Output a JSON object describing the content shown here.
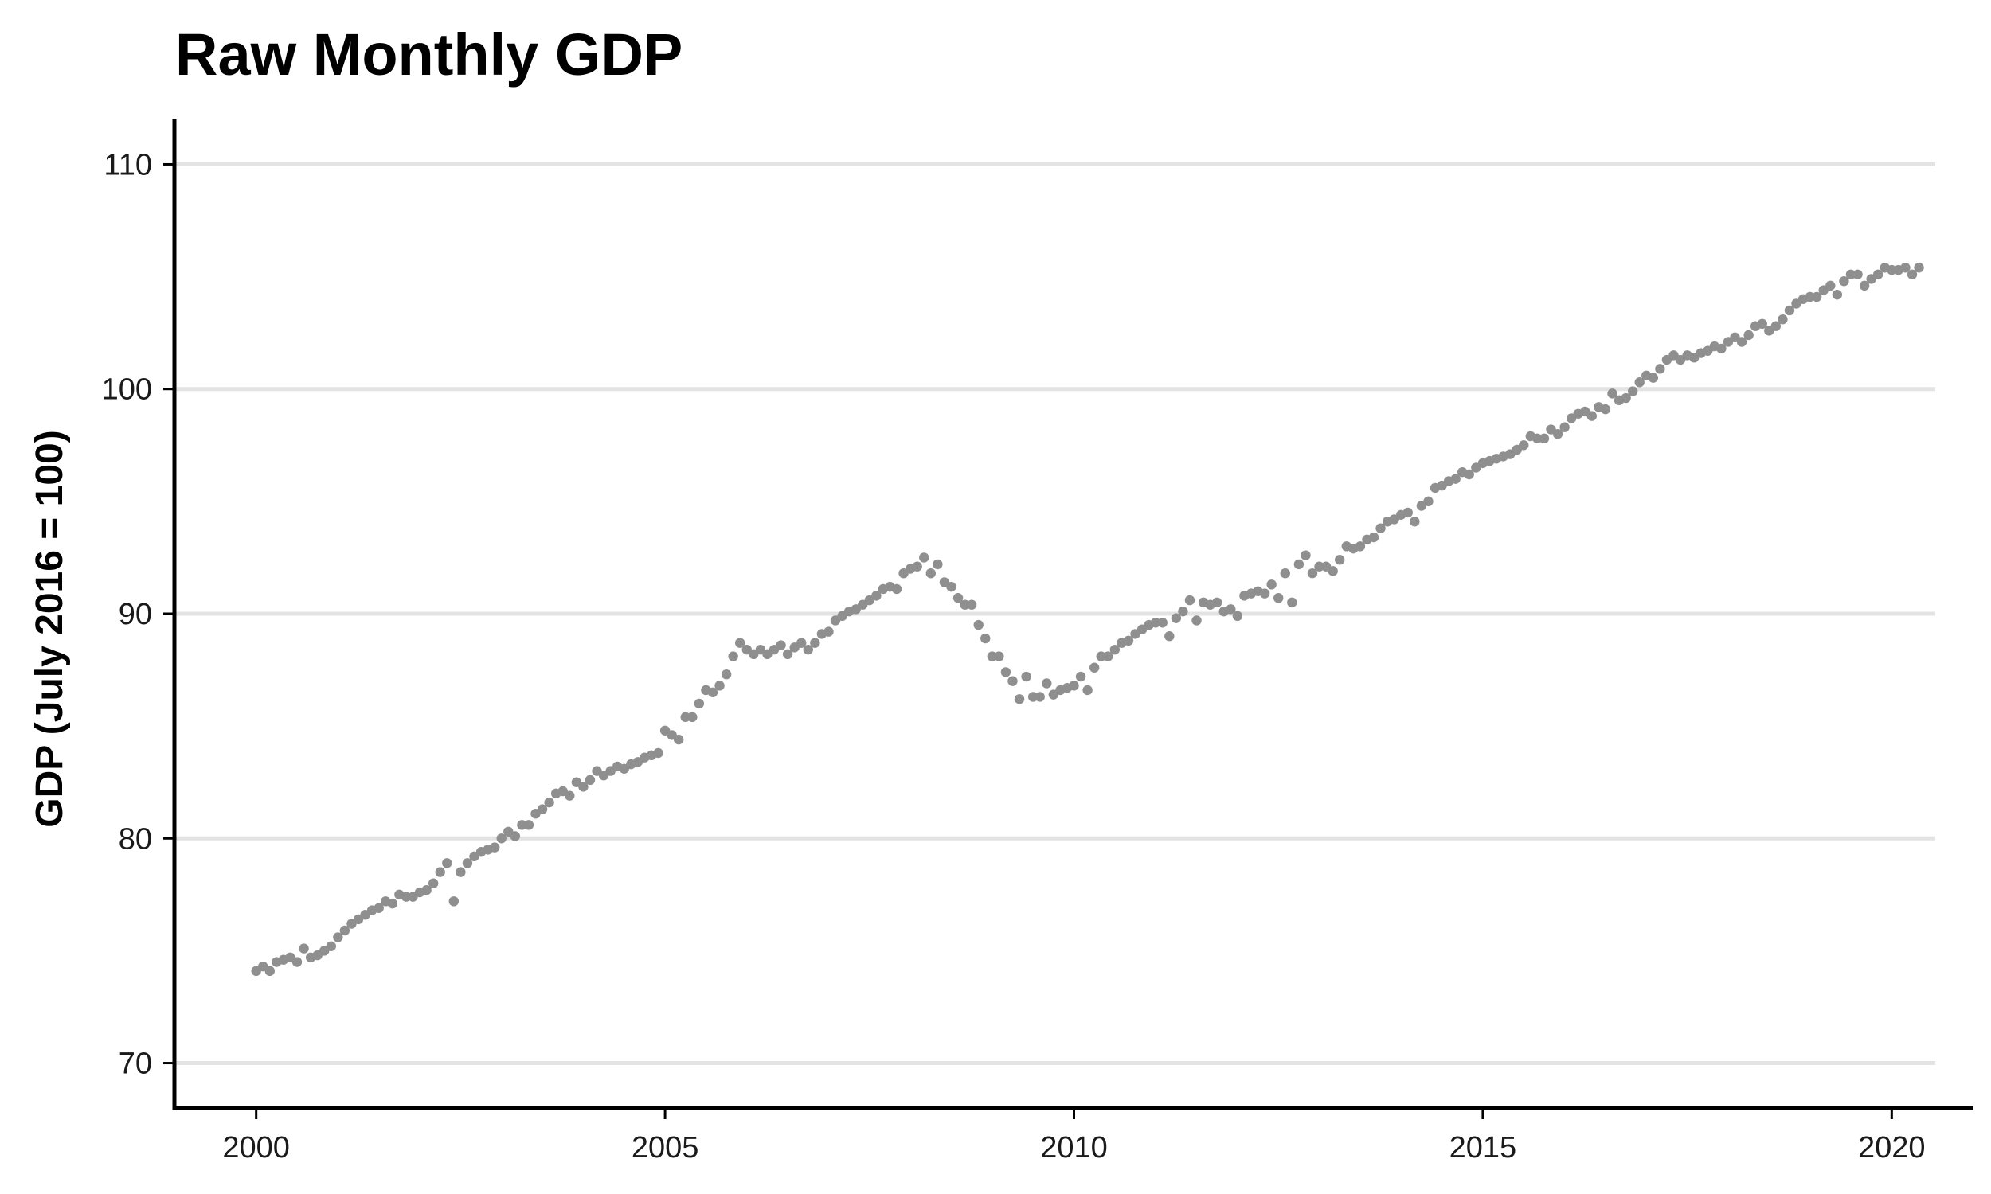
{
  "chart_data": {
    "type": "scatter",
    "title": "Raw Monthly GDP",
    "xlabel": "",
    "ylabel": "GDP (July 2016 = 100)",
    "xlim": [
      1999.0,
      2021.0
    ],
    "ylim": [
      68.0,
      112.0
    ],
    "x_ticks": [
      "2000",
      "2005",
      "2010",
      "2015",
      "2020"
    ],
    "y_ticks": [
      "70",
      "80",
      "90",
      "100",
      "110"
    ],
    "grid": "horizontal",
    "legend": "none",
    "point_color": "#8f8f8f",
    "x_start": "2000-01",
    "frequency": "monthly",
    "values": [
      74.1,
      74.3,
      74.1,
      74.5,
      74.6,
      74.7,
      74.5,
      75.1,
      74.7,
      74.8,
      75.0,
      75.2,
      75.6,
      75.9,
      76.2,
      76.4,
      76.6,
      76.8,
      76.9,
      77.2,
      77.1,
      77.5,
      77.4,
      77.4,
      77.6,
      77.7,
      78.0,
      78.5,
      78.9,
      77.2,
      78.5,
      78.9,
      79.2,
      79.4,
      79.5,
      79.6,
      80.0,
      80.3,
      80.1,
      80.6,
      80.6,
      81.1,
      81.3,
      81.6,
      82.0,
      82.1,
      81.9,
      82.5,
      82.3,
      82.6,
      83.0,
      82.8,
      83.0,
      83.2,
      83.1,
      83.3,
      83.4,
      83.6,
      83.7,
      83.8,
      84.8,
      84.6,
      84.4,
      85.4,
      85.4,
      86.0,
      86.6,
      86.5,
      86.8,
      87.3,
      88.1,
      88.7,
      88.4,
      88.2,
      88.4,
      88.2,
      88.4,
      88.6,
      88.2,
      88.5,
      88.7,
      88.4,
      88.7,
      89.1,
      89.2,
      89.7,
      89.9,
      90.1,
      90.2,
      90.4,
      90.6,
      90.8,
      91.1,
      91.2,
      91.1,
      91.8,
      92.0,
      92.1,
      92.5,
      91.8,
      92.2,
      91.4,
      91.2,
      90.7,
      90.4,
      90.4,
      89.5,
      88.9,
      88.1,
      88.1,
      87.4,
      87.0,
      86.2,
      87.2,
      86.3,
      86.3,
      86.9,
      86.4,
      86.6,
      86.7,
      86.8,
      87.2,
      86.6,
      87.6,
      88.1,
      88.1,
      88.4,
      88.7,
      88.8,
      89.1,
      89.3,
      89.5,
      89.6,
      89.6,
      89.0,
      89.8,
      90.1,
      90.6,
      89.7,
      90.5,
      90.4,
      90.5,
      90.1,
      90.2,
      89.9,
      90.8,
      90.9,
      91.0,
      90.9,
      91.3,
      90.7,
      91.8,
      90.5,
      92.2,
      92.6,
      91.8,
      92.1,
      92.1,
      91.9,
      92.4,
      93.0,
      92.9,
      93.0,
      93.3,
      93.4,
      93.8,
      94.1,
      94.2,
      94.4,
      94.5,
      94.1,
      94.8,
      95.0,
      95.6,
      95.7,
      95.9,
      96.0,
      96.3,
      96.2,
      96.5,
      96.7,
      96.8,
      96.9,
      97.0,
      97.1,
      97.3,
      97.5,
      97.9,
      97.8,
      97.8,
      98.2,
      98.0,
      98.3,
      98.7,
      98.9,
      99.0,
      98.8,
      99.2,
      99.1,
      99.8,
      99.5,
      99.6,
      99.9,
      100.3,
      100.6,
      100.5,
      100.9,
      101.3,
      101.5,
      101.3,
      101.5,
      101.4,
      101.6,
      101.7,
      101.9,
      101.8,
      102.1,
      102.3,
      102.1,
      102.4,
      102.8,
      102.9,
      102.6,
      102.8,
      103.1,
      103.5,
      103.8,
      104.0,
      104.1,
      104.1,
      104.4,
      104.6,
      104.2,
      104.8,
      105.1,
      105.1,
      104.6,
      104.9,
      105.1,
      105.4,
      105.3,
      105.3,
      105.4,
      105.1,
      105.4
    ]
  }
}
